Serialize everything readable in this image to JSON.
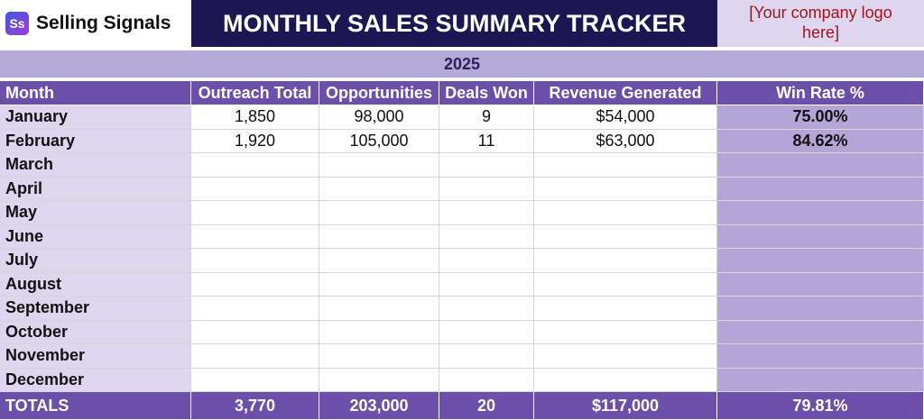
{
  "header": {
    "logo_icon": "Ss",
    "logo_text": "Selling Signals",
    "title": "MONTHLY SALES SUMMARY TRACKER",
    "company_logo": "[Your company logo here]"
  },
  "year": "2025",
  "table": {
    "columns": [
      "Month",
      "Outreach Total",
      "Opportunities",
      "Deals Won",
      "Revenue Generated",
      "Win Rate %"
    ],
    "rows": [
      {
        "month": "January",
        "cells": [
          "1,850",
          "98,000",
          "9",
          "$54,000",
          "75.00%"
        ]
      },
      {
        "month": "February",
        "cells": [
          "1,920",
          "105,000",
          "11",
          "$63,000",
          "84.62%"
        ]
      },
      {
        "month": "March"
      },
      {
        "month": "April"
      },
      {
        "month": "May"
      },
      {
        "month": "June"
      },
      {
        "month": "July"
      },
      {
        "month": "August"
      },
      {
        "month": "September"
      },
      {
        "month": "October"
      },
      {
        "month": "November"
      },
      {
        "month": "December"
      }
    ],
    "totals": [
      "TOTALS",
      "3,770",
      "203,000",
      "20",
      "$117,000",
      "79.81%"
    ]
  }
}
